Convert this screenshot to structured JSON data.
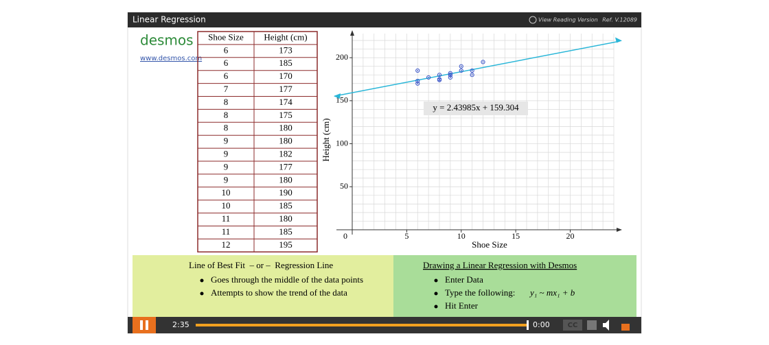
{
  "header": {
    "title": "Linear Regression",
    "reading": "View Reading Version",
    "ref": "Ref. V.12089"
  },
  "brand": {
    "logo": "desmos",
    "link": "www.desmos.com"
  },
  "table": {
    "columns": [
      "Shoe Size",
      "Height (cm)"
    ],
    "rows": [
      [
        6,
        173
      ],
      [
        6,
        185
      ],
      [
        6,
        170
      ],
      [
        7,
        177
      ],
      [
        8,
        174
      ],
      [
        8,
        175
      ],
      [
        8,
        180
      ],
      [
        9,
        180
      ],
      [
        9,
        182
      ],
      [
        9,
        177
      ],
      [
        9,
        180
      ],
      [
        10,
        190
      ],
      [
        10,
        185
      ],
      [
        11,
        180
      ],
      [
        11,
        185
      ],
      [
        12,
        195
      ]
    ]
  },
  "chart_data": {
    "type": "scatter",
    "x_label": "Shoe Size",
    "y_label": "Height (cm)",
    "x": [
      6,
      6,
      6,
      7,
      8,
      8,
      8,
      9,
      9,
      9,
      9,
      10,
      10,
      11,
      11,
      12
    ],
    "series": [
      {
        "color": "#3a55c8",
        "values": [
          173,
          185,
          170,
          177,
          174,
          175,
          180,
          180,
          182,
          177,
          180,
          190,
          185,
          180,
          185,
          195
        ]
      }
    ],
    "fit": {
      "slope": 2.43985,
      "intercept": 159.304,
      "label": "y = 2.43985x + 159.304",
      "color": "#29b6d8"
    },
    "xlim": [
      0,
      24
    ],
    "ylim": [
      0,
      228
    ],
    "xticks": [
      0,
      5,
      10,
      15,
      20
    ],
    "yticks": [
      50,
      100,
      150,
      200
    ],
    "grid": true
  },
  "notes": {
    "left": {
      "title": "Line of Best Fit  – or –  Regression Line",
      "bullets": [
        "Goes through the middle of the data points",
        "Attempts to show the trend of the data"
      ]
    },
    "right": {
      "title": "Drawing a Linear Regression with Desmos",
      "bullets": [
        "Enter Data",
        "Type the following:",
        "Hit Enter"
      ],
      "formula": "y₁ ~ mx₁ + b"
    }
  },
  "player": {
    "elapsed": "2:35",
    "remaining": "0:00",
    "cc": "CC"
  }
}
